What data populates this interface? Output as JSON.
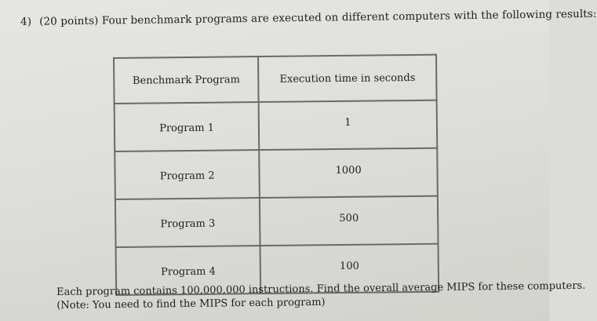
{
  "question": {
    "number": "4)",
    "text": "(20 points) Four benchmark programs are executed on different computers with the following results:"
  },
  "table": {
    "headers": [
      "Benchmark Program",
      "Execution time in seconds"
    ],
    "rows": [
      {
        "program": "Program 1",
        "time": "1"
      },
      {
        "program": "Program 2",
        "time": "1000"
      },
      {
        "program": "Program 3",
        "time": "500"
      },
      {
        "program": "Program 4",
        "time": "100"
      }
    ]
  },
  "footer": {
    "line1": "Each program contains 100,000,000 instructions.  Find the overall average MIPS for these computers.",
    "line2": "(Note: You need to find the MIPS for each program)"
  }
}
